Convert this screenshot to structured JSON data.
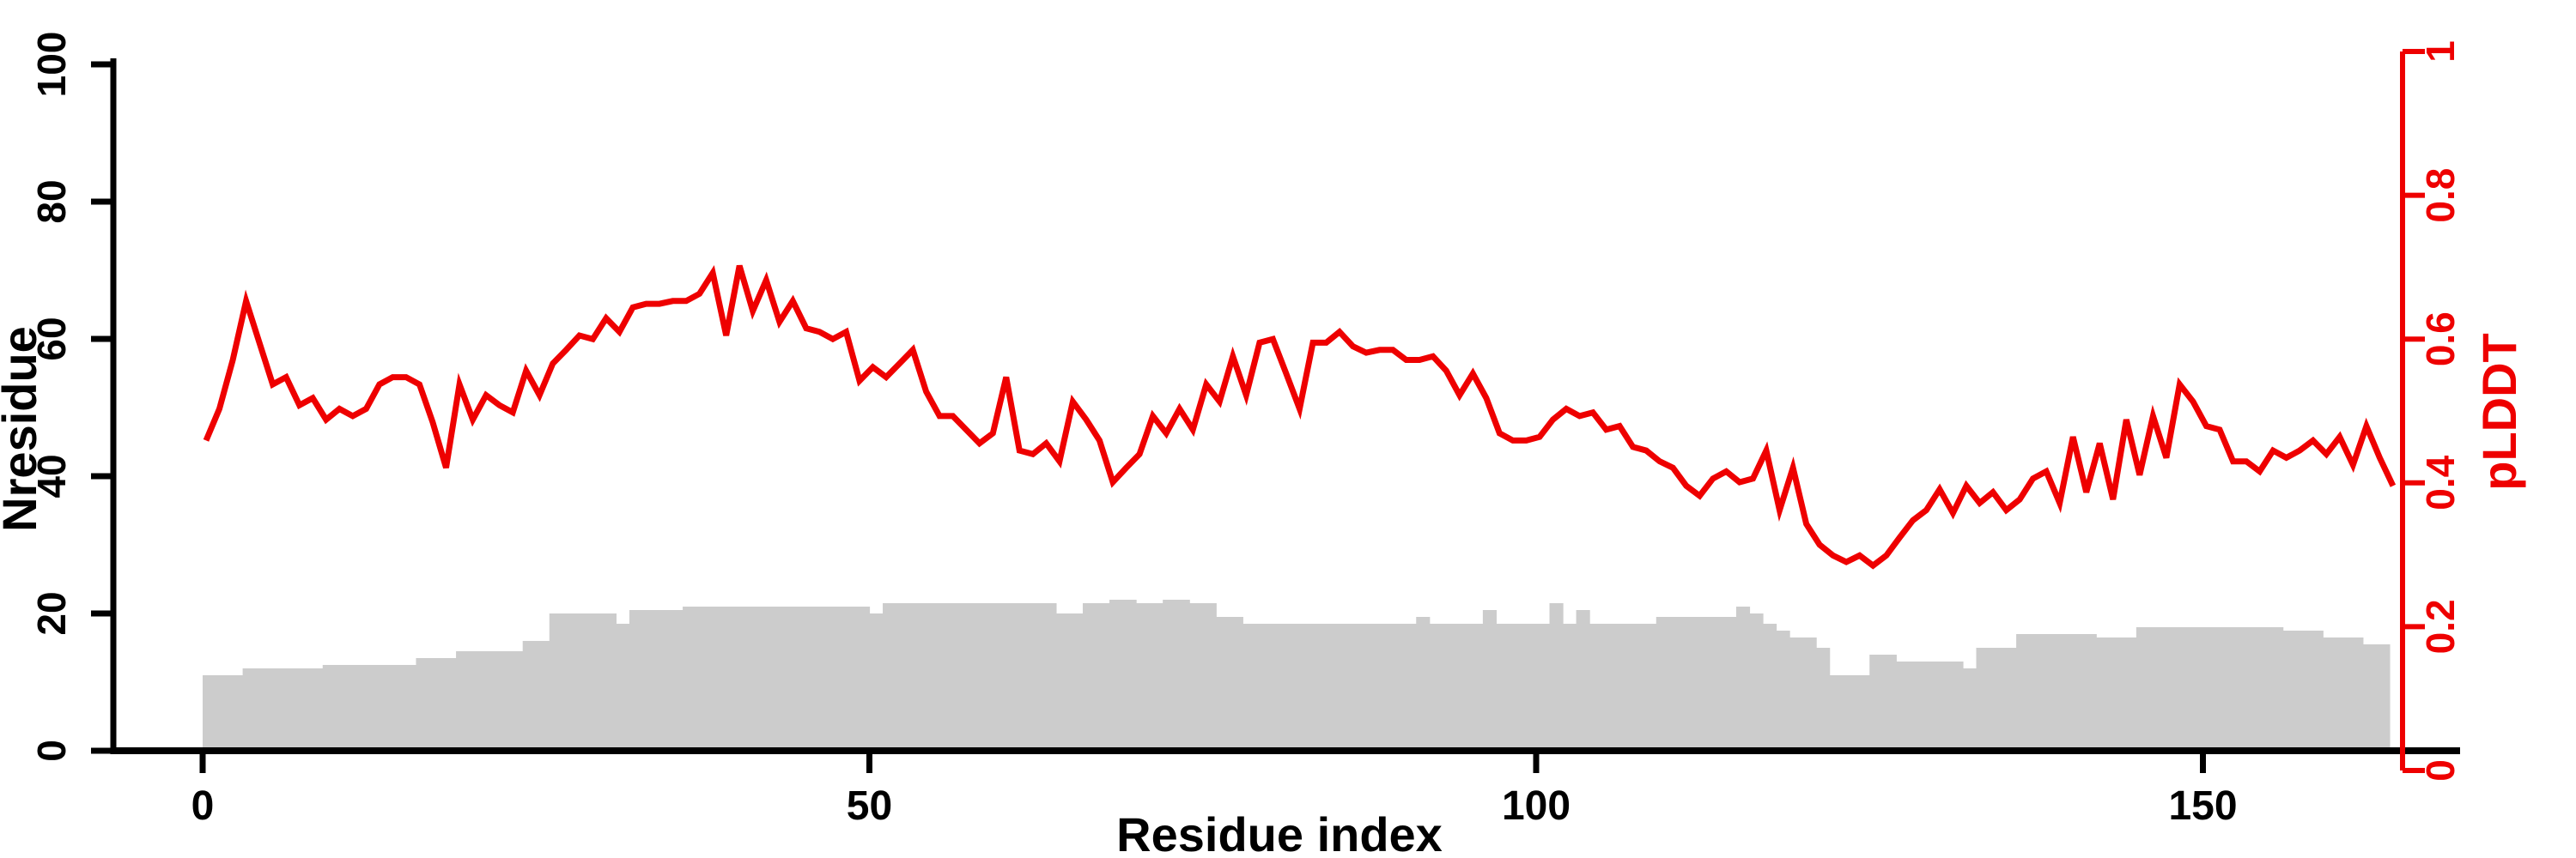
{
  "figure": {
    "background": "#ffffff",
    "accent_red": "#ee0000",
    "bar_gray": "#cccccc",
    "axis_black": "#000000"
  },
  "chart_data": {
    "type": "line+bar",
    "title": "",
    "xlabel": "Residue index",
    "ylabel_left": "Nresidue",
    "ylabel_right": "pLDDT",
    "x_axis": {
      "range": [
        0,
        165
      ],
      "ticks": [
        0,
        50,
        100,
        150
      ],
      "tick_labels": [
        "0",
        "50",
        "100",
        "150"
      ]
    },
    "y_axis_left": {
      "range": [
        0,
        100
      ],
      "ticks": [
        0,
        20,
        40,
        60,
        80,
        100
      ],
      "tick_labels": [
        "0",
        "20",
        "40",
        "60",
        "80",
        "100"
      ],
      "color": "#000000"
    },
    "y_axis_right": {
      "range": [
        0,
        1
      ],
      "ticks": [
        0,
        0.2,
        0.4,
        0.6,
        0.8,
        1
      ],
      "tick_labels": [
        "0",
        "0.2",
        "0.4",
        "0.6",
        "0.8",
        "1"
      ],
      "color": "#ee0000"
    },
    "grid": false,
    "legend": "none",
    "series": [
      {
        "name": "Nresidue",
        "type": "bar",
        "axis": "left",
        "color": "#cccccc",
        "x_start": 0,
        "values": [
          11,
          11,
          11,
          12,
          12,
          12,
          12,
          12,
          12,
          12.5,
          12.5,
          12.5,
          12.5,
          12.5,
          12.5,
          12.5,
          13.5,
          13.5,
          13.5,
          14.5,
          14.5,
          14.5,
          14.5,
          14.5,
          16,
          16,
          20,
          20,
          20,
          20,
          20,
          18.5,
          20.5,
          20.5,
          20.5,
          20.5,
          21,
          21,
          21,
          21,
          21,
          21,
          21,
          21,
          21,
          21,
          21,
          21,
          21,
          21,
          20,
          21.5,
          21.5,
          21.5,
          21.5,
          21.5,
          21.5,
          21.5,
          21.5,
          21.5,
          21.5,
          21.5,
          21.5,
          21.5,
          20,
          20,
          21.5,
          21.5,
          22,
          22,
          21.5,
          21.5,
          22,
          22,
          21.5,
          21.5,
          19.5,
          19.5,
          18.5,
          18.5,
          18.5,
          18.5,
          18.5,
          18.5,
          18.5,
          18.5,
          18.5,
          18.5,
          18.5,
          18.5,
          18.5,
          19.5,
          18.5,
          18.5,
          18.5,
          18.5,
          20.5,
          18.5,
          18.5,
          18.5,
          18.5,
          21.5,
          18.5,
          20.5,
          18.5,
          18.5,
          18.5,
          18.5,
          18.5,
          19.5,
          19.5,
          19.5,
          19.5,
          19.5,
          19.5,
          21,
          20,
          18.5,
          17.5,
          16.5,
          16.5,
          15,
          11,
          11,
          11,
          14,
          14,
          13,
          13,
          13,
          13,
          13,
          12,
          15,
          15,
          15,
          17,
          17,
          17,
          17,
          17,
          17,
          16.5,
          16.5,
          16.5,
          18,
          18,
          18,
          18,
          18,
          18,
          18,
          18,
          18,
          18,
          18,
          17.5,
          17.5,
          17.5,
          16.5,
          16.5,
          16.5,
          15.5,
          15.5
        ]
      },
      {
        "name": "pLDDT",
        "type": "line",
        "axis": "right",
        "color": "#ee0000",
        "x_start": 0,
        "values": [
          0.459,
          0.503,
          0.571,
          0.653,
          0.595,
          0.537,
          0.547,
          0.508,
          0.518,
          0.488,
          0.503,
          0.493,
          0.503,
          0.537,
          0.547,
          0.547,
          0.537,
          0.484,
          0.421,
          0.537,
          0.488,
          0.522,
          0.508,
          0.498,
          0.556,
          0.522,
          0.566,
          0.585,
          0.605,
          0.6,
          0.629,
          0.61,
          0.644,
          0.649,
          0.649,
          0.653,
          0.653,
          0.663,
          0.692,
          0.605,
          0.702,
          0.639,
          0.682,
          0.624,
          0.653,
          0.615,
          0.61,
          0.6,
          0.61,
          0.542,
          0.561,
          0.547,
          0.566,
          0.585,
          0.527,
          0.493,
          0.493,
          0.474,
          0.455,
          0.469,
          0.547,
          0.445,
          0.44,
          0.455,
          0.43,
          0.513,
          0.488,
          0.459,
          0.401,
          0.421,
          0.44,
          0.493,
          0.469,
          0.503,
          0.474,
          0.537,
          0.513,
          0.576,
          0.522,
          0.595,
          0.6,
          0.552,
          0.503,
          0.595,
          0.595,
          0.61,
          0.59,
          0.581,
          0.585,
          0.585,
          0.571,
          0.571,
          0.576,
          0.556,
          0.522,
          0.552,
          0.518,
          0.469,
          0.459,
          0.459,
          0.464,
          0.488,
          0.503,
          0.493,
          0.498,
          0.474,
          0.479,
          0.45,
          0.445,
          0.43,
          0.421,
          0.396,
          0.382,
          0.406,
          0.416,
          0.401,
          0.406,
          0.445,
          0.362,
          0.421,
          0.343,
          0.314,
          0.299,
          0.29,
          0.299,
          0.285,
          0.299,
          0.324,
          0.348,
          0.362,
          0.391,
          0.358,
          0.396,
          0.372,
          0.387,
          0.362,
          0.377,
          0.406,
          0.416,
          0.372,
          0.464,
          0.387,
          0.455,
          0.377,
          0.488,
          0.411,
          0.493,
          0.435,
          0.537,
          0.513,
          0.479,
          0.474,
          0.43,
          0.43,
          0.416,
          0.445,
          0.435,
          0.445,
          0.459,
          0.44,
          0.464,
          0.425,
          0.479,
          0.435,
          0.396
        ]
      }
    ]
  }
}
